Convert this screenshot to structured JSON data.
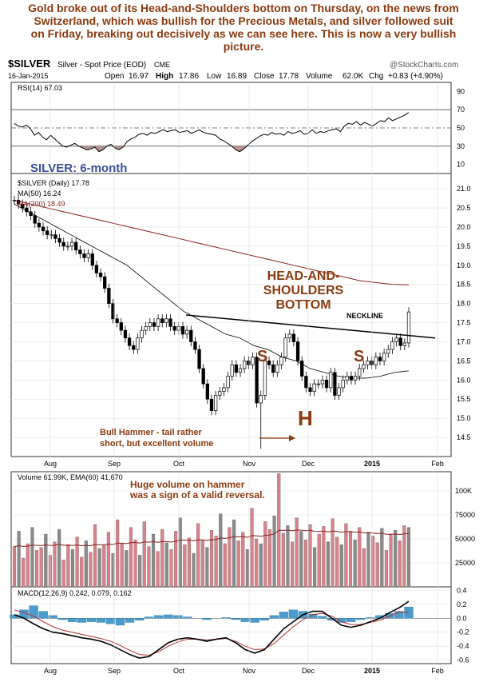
{
  "caption_lines": [
    "Gold broke out of its Head-and-Shoulders bottom on Thursday, on the news from",
    "Switzerland, which was bullish for the Precious Metals, and silver followed suit",
    "on Friday, breaking out decisively as we can see here. This is now a very bullish",
    "picture."
  ],
  "header": {
    "symbol": "$SILVER",
    "name": "Silver - Spot Price (EOD)",
    "exchange": "CME",
    "copyright": "@StockCharts.com",
    "date": "16-Jan-2015",
    "open_label": "Open",
    "open": "16.97",
    "high_label": "High",
    "high": "17.86",
    "low_label": "Low",
    "low": "16.89",
    "close_label": "Close",
    "close": "17.78",
    "volume_label": "Volume",
    "volume": "62.0K",
    "chg_label": "Chg",
    "chg": "+0.83 (+4.90%)"
  },
  "colors": {
    "price_candle": "#000000",
    "ma50": "#000000",
    "ma200": "#8b2020",
    "annotation": "#8b3a0f",
    "title_blue": "#3a4f9c",
    "volume_up": "#d9828a",
    "volume_down": "#8a8a8a",
    "histogram": "#4a9ccc",
    "rsi_fill": "#a07070"
  },
  "chart_data": [
    {
      "type": "line",
      "panel": "rsi",
      "legend": "RSI(14) 67.03",
      "ylim": [
        0,
        100
      ],
      "y_ticks": [
        "90",
        "70",
        "50",
        "30",
        "10"
      ],
      "reference_lines": [
        70,
        50,
        30
      ],
      "series": [
        {
          "name": "RSI(14)",
          "values": [
            55,
            52,
            51,
            53,
            49,
            42,
            45,
            40,
            37,
            42,
            38,
            34,
            30,
            29,
            31,
            33,
            30,
            28,
            26,
            27,
            29,
            24,
            26,
            30,
            32,
            28,
            26,
            29,
            35,
            38,
            40,
            43,
            44,
            42,
            45,
            44,
            46,
            48,
            46,
            47,
            48,
            45,
            46,
            47,
            44,
            46,
            48,
            45,
            44,
            43,
            42,
            38,
            36,
            33,
            30,
            26,
            24,
            27,
            31,
            35,
            38,
            41,
            43,
            42,
            45,
            43,
            44,
            42,
            46,
            44,
            45,
            47,
            43,
            44,
            48,
            44,
            46,
            45,
            47,
            48,
            49,
            46,
            52,
            55,
            54,
            57,
            53,
            56,
            54,
            52,
            55,
            58,
            57,
            61,
            58,
            60,
            62,
            64,
            67
          ]
        }
      ]
    },
    {
      "type": "line",
      "panel": "price",
      "title": "SILVER: 6-month",
      "legend": [
        "$SILVER (Daily) 17.78",
        "MA(50) 16.24",
        "MA(200) 18.49"
      ],
      "ylim": [
        14.0,
        21.4
      ],
      "y_ticks": [
        "21.0",
        "20.5",
        "20.0",
        "19.5",
        "19.0",
        "18.5",
        "18.0",
        "17.5",
        "17.0",
        "16.5",
        "16.0",
        "15.5",
        "15.0",
        "14.5"
      ],
      "x_labels": [
        "Aug",
        "Sep",
        "Oct",
        "Nov",
        "Dec",
        "2015",
        "Feb"
      ],
      "series": [
        {
          "name": "$SILVER",
          "values": [
            20.7,
            20.6,
            20.5,
            20.4,
            20.3,
            20.1,
            20.0,
            19.9,
            19.8,
            19.8,
            19.7,
            19.6,
            19.5,
            19.5,
            19.6,
            19.4,
            19.3,
            19.2,
            19.3,
            19.0,
            18.8,
            18.7,
            18.4,
            18.0,
            17.6,
            17.5,
            17.3,
            17.1,
            16.9,
            16.8,
            17.1,
            17.3,
            17.4,
            17.5,
            17.4,
            17.6,
            17.5,
            17.6,
            17.4,
            17.3,
            17.4,
            17.2,
            17.3,
            17.0,
            16.8,
            16.3,
            15.9,
            15.5,
            15.2,
            15.6,
            15.7,
            15.8,
            16.1,
            16.4,
            16.2,
            16.3,
            16.5,
            16.4,
            16.6,
            15.4,
            15.6,
            16.5,
            16.4,
            16.2,
            16.4,
            16.6,
            17.1,
            17.2,
            17.0,
            16.5,
            16.1,
            15.8,
            15.7,
            15.9,
            15.9,
            16.0,
            15.8,
            16.2,
            15.6,
            15.8,
            16.0,
            16.1,
            16.0,
            16.1,
            16.3,
            16.4,
            16.5,
            16.4,
            16.6,
            16.5,
            16.7,
            16.8,
            17.0,
            17.1,
            16.9,
            16.97,
            17.78
          ]
        },
        {
          "name": "MA(50)",
          "values": [
            20.6,
            20.4,
            20.2,
            20.0,
            19.8,
            19.6,
            19.4,
            19.2,
            19.0,
            18.7,
            18.4,
            18.1,
            17.8,
            17.6,
            17.4,
            17.2,
            17.1,
            16.9,
            16.8,
            16.6,
            16.5,
            16.3,
            16.2,
            16.1,
            16.05,
            16.05,
            16.1,
            16.2,
            16.24
          ]
        },
        {
          "name": "MA(200)",
          "values": [
            20.7,
            20.6,
            20.5,
            20.4,
            20.3,
            20.2,
            20.1,
            20.0,
            19.9,
            19.8,
            19.7,
            19.6,
            19.5,
            19.4,
            19.3,
            19.2,
            19.1,
            19.0,
            18.9,
            18.8,
            18.7,
            18.6,
            18.55,
            18.5,
            18.49
          ]
        }
      ],
      "neckline": [
        17.7,
        17.1
      ],
      "annotations": [
        "HEAD-AND-",
        "SHOULDERS",
        "BOTTOM",
        "NECKLINE",
        "S",
        "H",
        "S",
        "Bull Hammer - tail rather",
        "short, but excellent volume"
      ]
    },
    {
      "type": "bar",
      "panel": "volume",
      "legend": "Volume 61.99K, EMA(60) 41,670",
      "annotations": [
        "Huge volume on hammer",
        "was a sign of a valid reversal."
      ],
      "ylim": [
        0,
        120000
      ],
      "y_ticks": [
        "100K",
        "75000",
        "50000",
        "25000"
      ],
      "values": [
        42000,
        58000,
        30000,
        45000,
        62000,
        38000,
        41000,
        55000,
        33000,
        47000,
        60000,
        28000,
        44000,
        39000,
        52000,
        31000,
        48000,
        36000,
        65000,
        40000,
        43000,
        57000,
        35000,
        70000,
        45000,
        38000,
        62000,
        49000,
        33000,
        68000,
        42000,
        55000,
        37000,
        60000,
        46000,
        39000,
        58000,
        72000,
        44000,
        51000,
        35000,
        66000,
        48000,
        41000,
        59000,
        53000,
        76000,
        45000,
        62000,
        70000,
        48000,
        57000,
        39000,
        82000,
        50000,
        45000,
        68000,
        60000,
        74000,
        118000,
        56000,
        64000,
        47000,
        72000,
        58000,
        49000,
        65000,
        41000,
        55000,
        63000,
        47000,
        71000,
        52000,
        44000,
        66000,
        58000,
        49000,
        62000,
        40000,
        57000,
        53000,
        46000,
        61000,
        38000,
        55000,
        59000,
        48000,
        64000,
        62000
      ]
    },
    {
      "type": "line",
      "panel": "macd",
      "legend": "MACD(12,26,9) 0.242, 0.079, 0.162",
      "ylim": [
        -0.65,
        0.45
      ],
      "y_ticks": [
        "0.4",
        "0.2",
        "0.0",
        "-0.2",
        "-0.4",
        "-0.6"
      ],
      "series": [
        {
          "name": "MACD",
          "values": [
            0.05,
            0.0,
            -0.08,
            -0.15,
            -0.2,
            -0.22,
            -0.25,
            -0.28,
            -0.3,
            -0.33,
            -0.38,
            -0.45,
            -0.52,
            -0.57,
            -0.55,
            -0.45,
            -0.35,
            -0.3,
            -0.28,
            -0.3,
            -0.33,
            -0.3,
            -0.28,
            -0.35,
            -0.45,
            -0.5,
            -0.45,
            -0.3,
            -0.15,
            -0.05,
            0.05,
            0.1,
            0.1,
            0.0,
            -0.1,
            -0.13,
            -0.1,
            -0.05,
            0.0,
            0.08,
            0.15,
            0.242
          ]
        },
        {
          "name": "Signal",
          "values": [
            0.12,
            0.08,
            0.03,
            -0.05,
            -0.12,
            -0.17,
            -0.2,
            -0.23,
            -0.26,
            -0.29,
            -0.33,
            -0.39,
            -0.46,
            -0.52,
            -0.53,
            -0.48,
            -0.4,
            -0.34,
            -0.3,
            -0.3,
            -0.31,
            -0.3,
            -0.29,
            -0.33,
            -0.4,
            -0.45,
            -0.44,
            -0.36,
            -0.24,
            -0.12,
            -0.02,
            0.05,
            0.07,
            0.03,
            -0.05,
            -0.09,
            -0.09,
            -0.06,
            -0.03,
            0.03,
            0.09,
            0.079
          ]
        }
      ],
      "histogram": [
        0.05,
        0.12,
        0.18,
        0.1,
        0.04,
        -0.02,
        -0.05,
        -0.06,
        -0.05,
        -0.06,
        -0.08,
        -0.1,
        -0.06,
        -0.03,
        0.02,
        0.04,
        0.05,
        0.04,
        0.02,
        0.0,
        -0.02,
        0.0,
        0.01,
        -0.02,
        -0.05,
        -0.06,
        -0.03,
        0.04,
        0.09,
        0.12,
        0.1,
        0.06,
        0.03,
        -0.03,
        -0.06,
        -0.05,
        -0.02,
        0.01,
        0.04,
        0.07,
        0.1,
        0.162
      ]
    }
  ]
}
